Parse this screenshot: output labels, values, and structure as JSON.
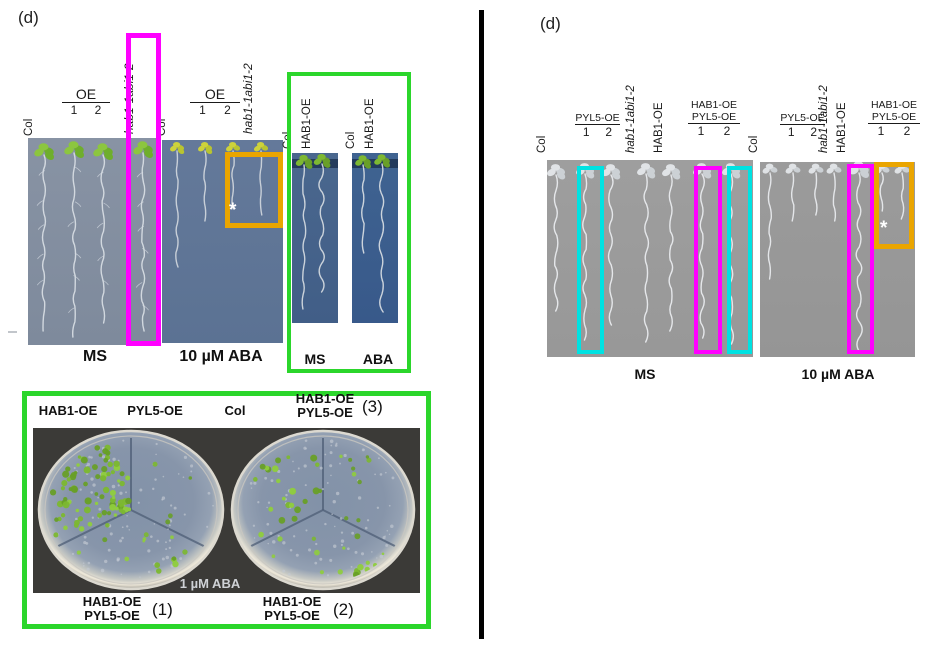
{
  "colors": {
    "magenta": "#ff00ff",
    "green": "#2bd62b",
    "orange": "#eaa500",
    "cyan": "#00e2e2",
    "divider": "#000000"
  },
  "left": {
    "panel_label": "(d)",
    "cols": {
      "col": "Col",
      "oe": "OE",
      "n1": "1",
      "n2": "2",
      "mutant": "hab1-1abi1-2"
    },
    "captions": {
      "ms": "MS",
      "aba": "10 µM ABA"
    },
    "inset": {
      "col": "Col",
      "hab1": "HAB1-OE",
      "ms": "MS",
      "aba": "ABA"
    },
    "asterisk": "*"
  },
  "plate": {
    "top": {
      "hab1": "HAB1-OE",
      "pyl5": "PYL5-OE",
      "col": "Col",
      "combo_top": "HAB1-OE",
      "combo_bottom": "PYL5-OE",
      "n3": "(3)"
    },
    "caption_in_photo": "1 µM ABA",
    "bottom": {
      "combo_top": "HAB1-OE",
      "combo_bottom": "PYL5-OE",
      "n1": "(1)",
      "n2": "(2)"
    }
  },
  "right": {
    "panel_label": "(d)",
    "cols": {
      "col": "Col",
      "pyl5": "PYL5-OE",
      "n1": "1",
      "n2": "2",
      "mutant": "hab1-1abi1-2",
      "hab1": "HAB1-OE",
      "combo_top": "HAB1-OE",
      "combo_bottom": "PYL5-OE"
    },
    "captions": {
      "ms": "MS",
      "aba": "10 µM ABA"
    },
    "asterisk": "*"
  }
}
